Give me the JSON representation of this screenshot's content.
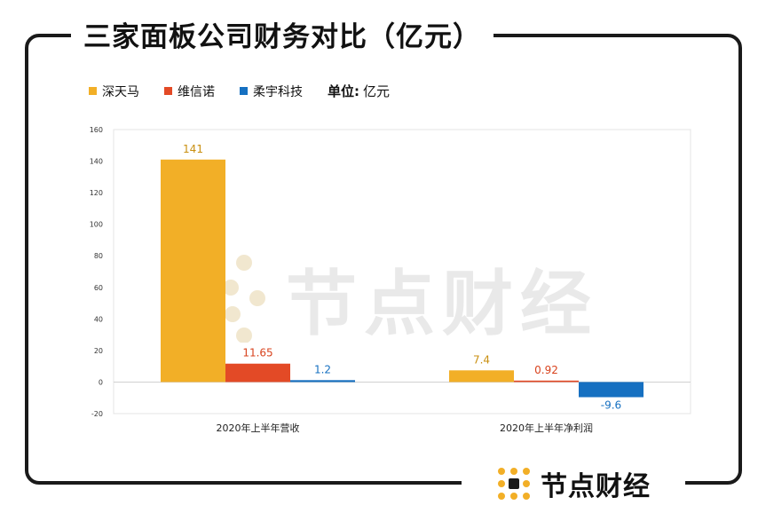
{
  "title": "三家面板公司财务对比（亿元）",
  "legend": [
    {
      "label": "深天马",
      "color": "#F2AF27"
    },
    {
      "label": "维信诺",
      "color": "#E34A26"
    },
    {
      "label": "柔宇科技",
      "color": "#1670C1"
    }
  ],
  "unit": {
    "key": "单位:",
    "value": "亿元"
  },
  "brand": {
    "name": "节点财经",
    "logo_icon": "node-dots-logo-icon"
  },
  "watermark": "节点财经",
  "chart_data": {
    "type": "bar",
    "categories": [
      "2020年上半年营收",
      "2020年上半年净利润"
    ],
    "series": [
      {
        "name": "深天马",
        "values": [
          141,
          7.4
        ],
        "labels": [
          "141",
          "7.4"
        ],
        "color": "#F2AF27",
        "label_color": "#C98F10"
      },
      {
        "name": "维信诺",
        "values": [
          11.65,
          0.92
        ],
        "labels": [
          "11.65",
          "0.92"
        ],
        "color": "#E34A26",
        "label_color": "#D8431E"
      },
      {
        "name": "柔宇科技",
        "values": [
          1.2,
          -9.6
        ],
        "labels": [
          "1.2",
          "-9.6"
        ],
        "color": "#1670C1",
        "label_color": "#1670C1"
      }
    ],
    "ylim": [
      -20,
      160
    ],
    "yticks": [
      "-20",
      "0",
      "20",
      "40",
      "60",
      "80",
      "100",
      "120",
      "140",
      "160"
    ],
    "grid": false,
    "legend_position": "top-left",
    "xlabel": "",
    "ylabel": ""
  }
}
